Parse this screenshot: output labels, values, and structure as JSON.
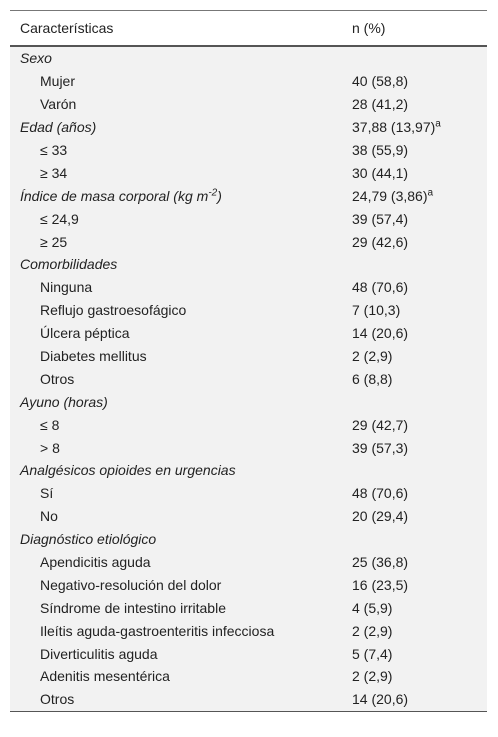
{
  "header": {
    "col1": "Características",
    "col2": "n (%)"
  },
  "rows": [
    {
      "kind": "section",
      "label": "Sexo",
      "value": ""
    },
    {
      "kind": "item",
      "label": "Mujer",
      "value": "40 (58,8)"
    },
    {
      "kind": "item",
      "label": "Varón",
      "value": "28 (41,2)"
    },
    {
      "kind": "section",
      "label": "Edad (años)",
      "value": "37,88 (13,97)",
      "sup": "a"
    },
    {
      "kind": "item",
      "label": "≤ 33",
      "value": "38 (55,9)"
    },
    {
      "kind": "item",
      "label": "≥ 34",
      "value": "30 (44,1)"
    },
    {
      "kind": "section",
      "label": "Índice de masa corporal (kg m",
      "label_sup": "-2",
      "label_tail": ")",
      "value": "24,79 (3,86)",
      "sup": "a"
    },
    {
      "kind": "item",
      "label": "≤ 24,9",
      "value": "39 (57,4)"
    },
    {
      "kind": "item",
      "label": "≥ 25",
      "value": "29 (42,6)"
    },
    {
      "kind": "section",
      "label": "Comorbilidades",
      "value": ""
    },
    {
      "kind": "item",
      "label": "Ninguna",
      "value": "48 (70,6)"
    },
    {
      "kind": "item",
      "label": "Reflujo gastroesofágico",
      "value": "7 (10,3)"
    },
    {
      "kind": "item",
      "label": "Úlcera péptica",
      "value": "14 (20,6)"
    },
    {
      "kind": "item",
      "label": "Diabetes mellitus",
      "value": "2 (2,9)"
    },
    {
      "kind": "item",
      "label": "Otros",
      "value": "6 (8,8)"
    },
    {
      "kind": "section",
      "label": "Ayuno (horas)",
      "value": ""
    },
    {
      "kind": "item",
      "label": "≤ 8",
      "value": "29 (42,7)"
    },
    {
      "kind": "item",
      "label": "> 8",
      "value": "39 (57,3)"
    },
    {
      "kind": "section",
      "label": "Analgésicos opioides en urgencias",
      "value": ""
    },
    {
      "kind": "item",
      "label": "Sí",
      "value": "48 (70,6)"
    },
    {
      "kind": "item",
      "label": "No",
      "value": "20 (29,4)"
    },
    {
      "kind": "section",
      "label": "Diagnóstico etiológico",
      "value": ""
    },
    {
      "kind": "item",
      "label": "Apendicitis aguda",
      "value": "25 (36,8)"
    },
    {
      "kind": "item",
      "label": "Negativo-resolución del dolor",
      "value": "16 (23,5)"
    },
    {
      "kind": "item",
      "label": "Síndrome de intestino irritable",
      "value": "4 (5,9)"
    },
    {
      "kind": "item",
      "label": "Ileítis aguda-gastroenteritis infecciosa",
      "value": "2 (2,9)"
    },
    {
      "kind": "item",
      "label": "Diverticulitis aguda",
      "value": "5 (7,4)"
    },
    {
      "kind": "item",
      "label": "Adenitis mesentérica",
      "value": "2 (2,9)"
    },
    {
      "kind": "item",
      "label": "Otros",
      "value": "14 (20,6)"
    }
  ]
}
